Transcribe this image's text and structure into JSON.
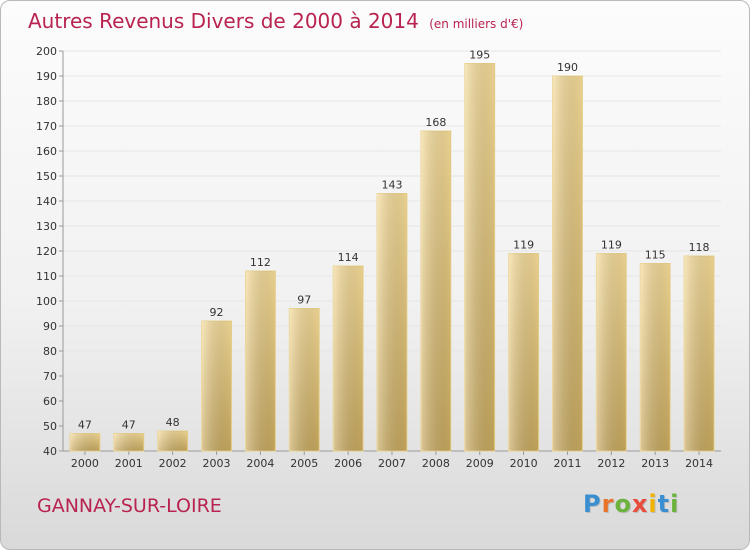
{
  "header": {
    "title": "Autres Revenus Divers de 2000 à 2014",
    "subtitle": "(en milliers d'€)"
  },
  "footer": {
    "city": "GANNAY-SUR-LOIRE",
    "logo_letters": [
      "P",
      "r",
      "o",
      "x",
      "i",
      "t",
      "i"
    ],
    "logo_colors": [
      "#3b8fd1",
      "#e8742c",
      "#6cb33e",
      "#e84c3d",
      "#f0b400",
      "#3b8fd1",
      "#6cb33e"
    ]
  },
  "colors": {
    "bar_light": "#f6dc98",
    "bar_dark": "#c8a95e",
    "grid": "#e6e6e6",
    "axis": "#999999",
    "title": "#b8234f"
  },
  "chart_data": {
    "type": "bar",
    "categories": [
      "2000",
      "2001",
      "2002",
      "2003",
      "2004",
      "2005",
      "2006",
      "2007",
      "2008",
      "2009",
      "2010",
      "2011",
      "2012",
      "2013",
      "2014"
    ],
    "values": [
      47,
      47,
      48,
      92,
      112,
      97,
      114,
      143,
      168,
      195,
      119,
      190,
      119,
      115,
      118
    ],
    "ylim": [
      40,
      200
    ],
    "yticks": [
      40,
      50,
      60,
      70,
      80,
      90,
      100,
      110,
      120,
      130,
      140,
      150,
      160,
      170,
      180,
      190,
      200
    ],
    "grid": true,
    "data_labels": true
  }
}
